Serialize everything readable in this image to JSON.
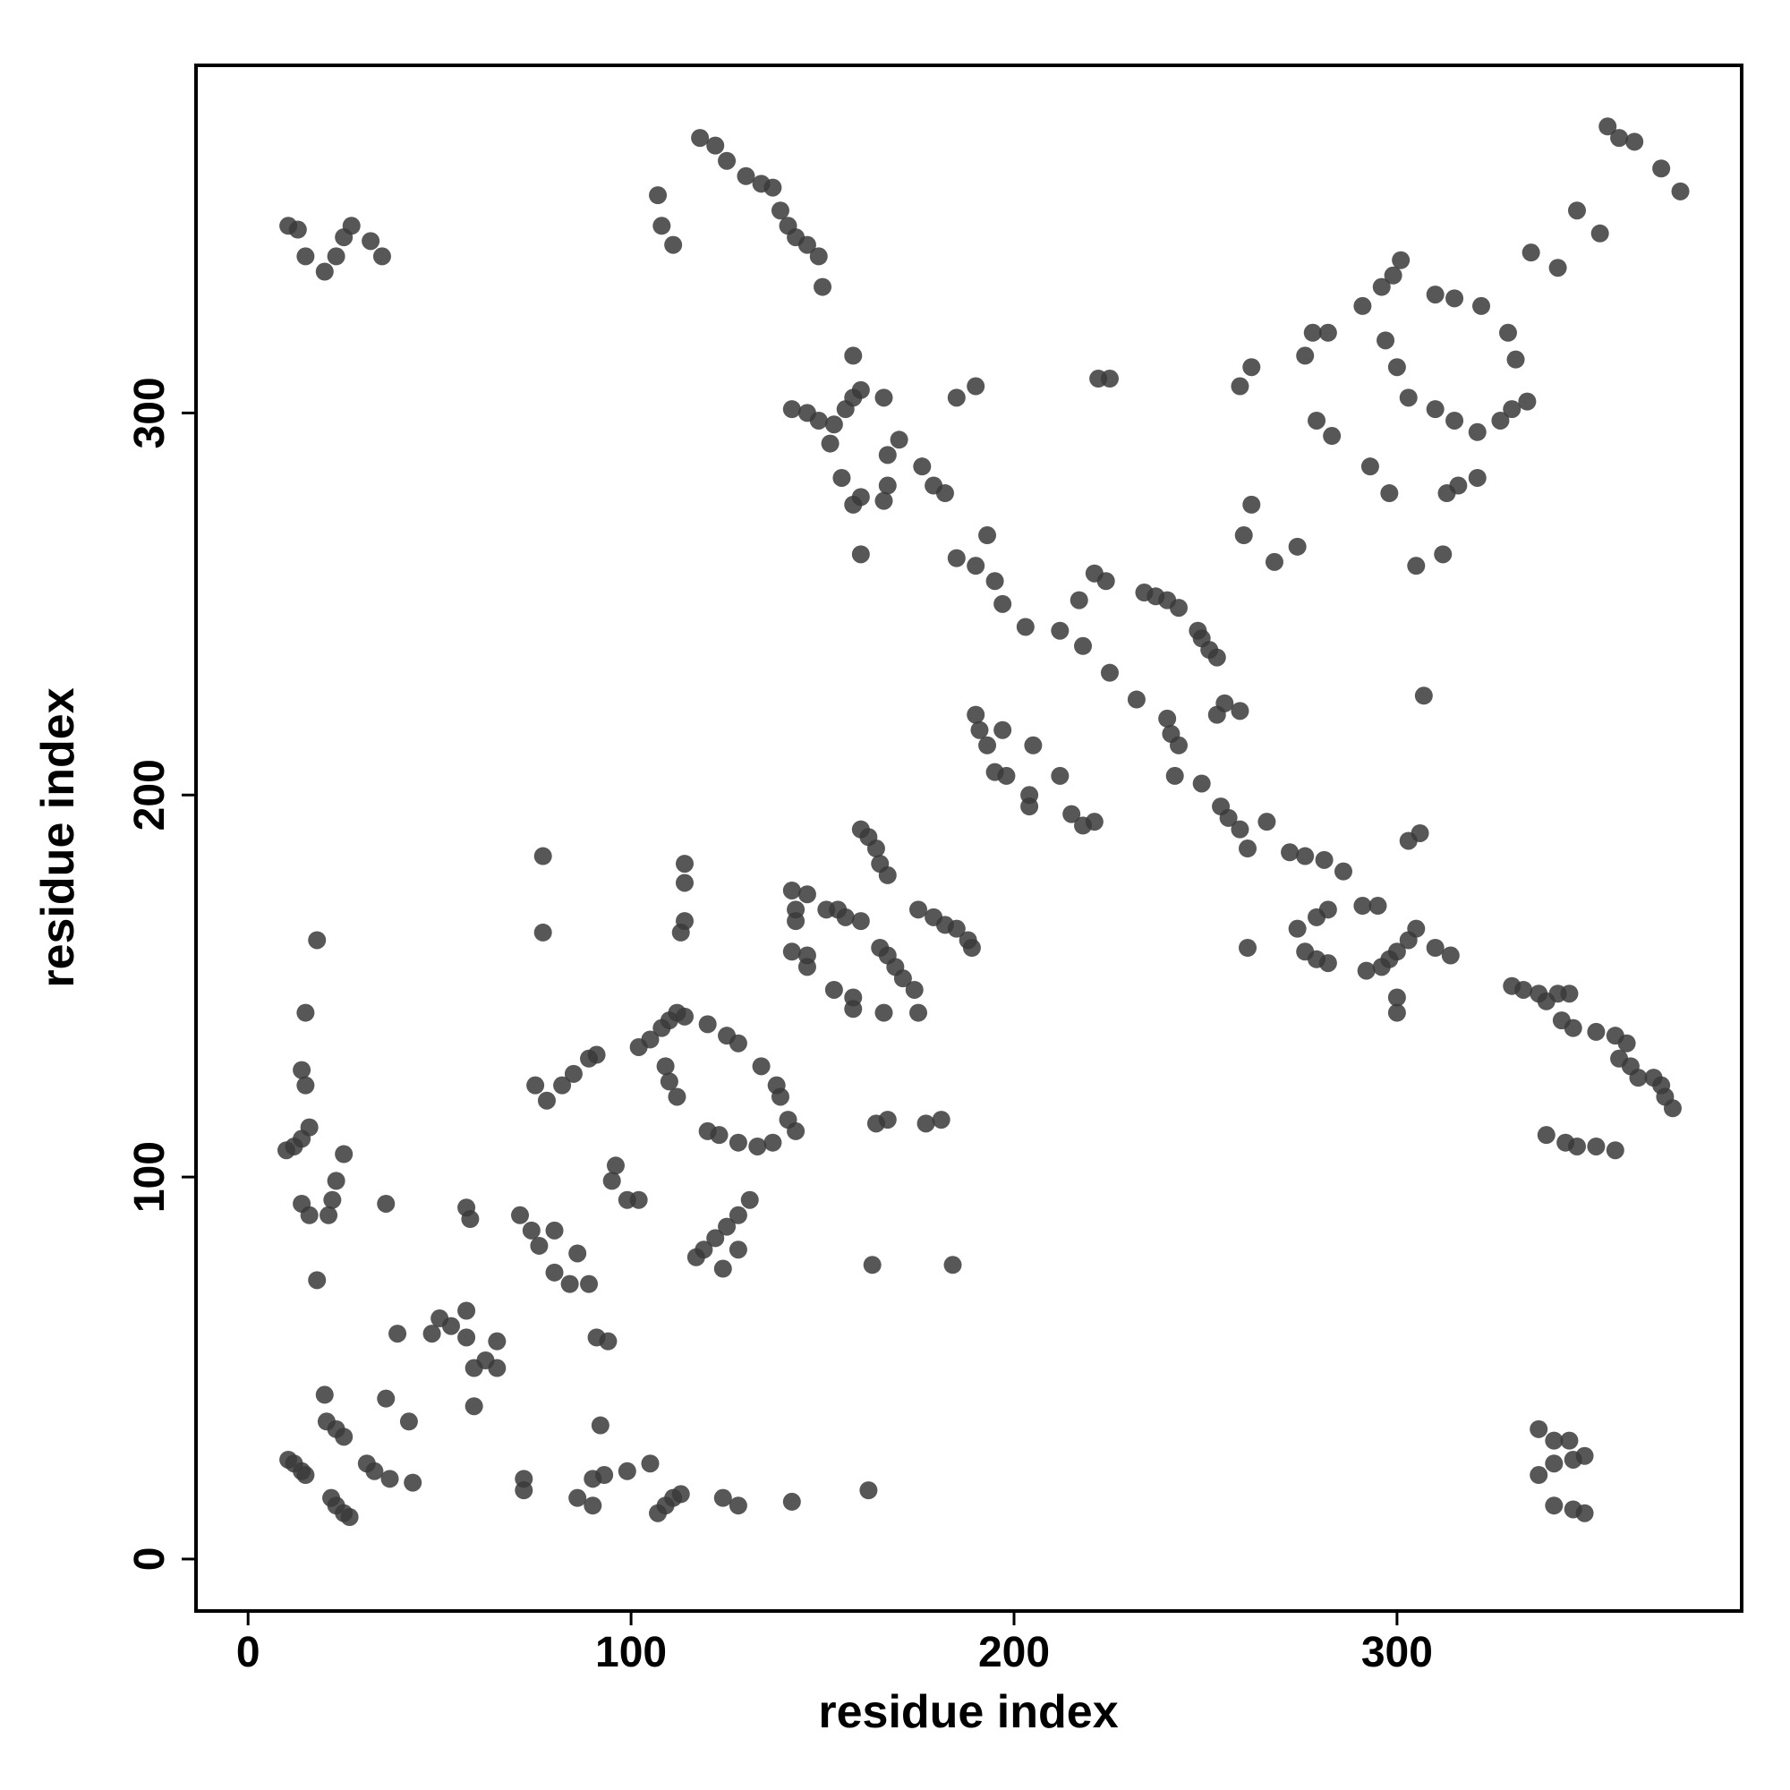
{
  "chart_data": {
    "type": "scatter",
    "x_label": "residue index",
    "y_label": "residue index",
    "color": "#3a3a3a",
    "xlim": [
      -13.6,
      390
    ],
    "ylim": [
      -13.6,
      391
    ],
    "xticks": [
      0,
      100,
      200,
      300
    ],
    "yticks": [
      0,
      100,
      200,
      300
    ],
    "grid": false,
    "x": [
      10.5,
      12,
      14,
      15,
      21.7,
      23,
      25,
      26.5,
      20.5,
      23,
      25,
      31,
      33,
      37,
      43,
      36,
      42,
      20,
      48,
      50,
      53,
      57,
      57,
      59,
      62,
      65,
      59,
      39,
      65,
      72,
      72,
      86,
      90,
      93,
      99,
      105,
      92,
      90,
      107,
      109,
      111,
      113,
      124,
      128,
      142,
      162,
      71,
      74,
      80,
      86,
      80,
      84,
      89,
      91,
      94,
      76,
      14,
      16,
      22,
      21,
      23,
      25,
      18,
      36,
      57,
      58,
      95,
      96,
      99,
      102,
      10,
      12,
      14,
      16,
      15,
      14,
      15,
      18,
      77,
      77,
      117,
      119,
      122,
      125,
      128,
      131,
      124,
      128,
      75,
      78,
      82,
      85,
      89,
      91,
      102,
      105,
      108,
      110,
      112,
      114,
      109,
      110,
      112,
      120,
      125,
      128,
      134,
      138,
      139,
      141,
      143,
      137,
      133,
      128,
      120,
      123,
      114,
      114,
      114,
      113,
      142,
      146,
      143,
      143,
      142,
      146,
      146,
      151,
      154,
      156,
      160,
      153,
      158,
      158,
      160,
      162,
      164,
      165,
      167,
      165,
      167,
      169,
      171,
      174,
      166,
      175,
      164,
      167,
      177,
      181,
      163,
      184,
      175,
      179,
      182,
      185,
      188,
      189,
      337,
      341,
      346,
      349,
      337,
      341,
      341,
      346,
      349,
      345,
      330,
      333,
      337,
      339,
      342,
      345,
      343,
      346,
      352,
      357,
      360,
      358,
      361,
      363,
      367,
      369,
      370,
      372,
      339,
      344,
      347,
      352,
      357,
      276,
      279,
      282,
      274,
      279,
      282,
      276,
      281,
      286,
      291,
      295,
      292,
      296,
      298,
      300,
      303,
      305,
      300,
      300,
      303,
      306,
      310,
      314,
      261,
      254,
      256,
      259,
      261,
      266,
      272,
      249,
      242,
      240,
      241,
      243,
      253,
      255,
      259,
      248,
      249,
      251,
      253,
      234,
      237,
      240,
      243,
      232,
      225,
      218,
      212,
      217,
      221,
      224,
      215,
      218,
      221,
      204,
      204,
      212,
      195,
      198,
      205,
      191,
      193,
      197,
      190,
      203,
      197,
      195,
      190,
      185,
      193,
      182,
      179,
      176,
      170,
      167,
      167,
      166,
      155,
      158,
      160,
      160,
      142,
      146,
      149,
      153,
      156,
      158,
      160,
      158,
      166,
      152,
      185,
      190,
      222,
      225,
      10.5,
      13,
      15,
      20,
      23,
      25,
      27,
      32,
      35,
      107,
      108,
      111,
      118,
      122,
      125,
      130,
      134,
      137,
      139,
      141,
      143,
      146,
      149,
      150,
      355,
      358,
      362,
      369,
      374,
      347,
      353,
      342,
      335,
      301,
      299,
      296,
      291,
      297,
      300,
      303,
      310,
      315,
      321,
      327,
      330,
      334,
      331,
      329,
      322,
      315,
      310,
      278,
      276,
      282,
      259,
      262,
      279,
      283,
      293,
      298,
      262,
      260,
      268,
      274,
      313,
      316,
      321,
      305,
      312,
      307
    ],
    "y": [
      26,
      25,
      23,
      22,
      16,
      14,
      12,
      11,
      36,
      34,
      32,
      25,
      23,
      21,
      20,
      42,
      36,
      43,
      59,
      63,
      61,
      65,
      58,
      50,
      52,
      57,
      40,
      59,
      50,
      21,
      18,
      16,
      21,
      22,
      23,
      25,
      35,
      14,
      12,
      14,
      16,
      17,
      16,
      14,
      15,
      18,
      90,
      86,
      86,
      80,
      75,
      72,
      72,
      58,
      57,
      82,
      93,
      90,
      94,
      90,
      99,
      106,
      73,
      93,
      92,
      89,
      99,
      103,
      94,
      94,
      107,
      108,
      110,
      113,
      124,
      128,
      143,
      162,
      164,
      184,
      79,
      81,
      84,
      87,
      90,
      94,
      76,
      81,
      124,
      120,
      124,
      127,
      131,
      132,
      134,
      136,
      139,
      141,
      143,
      142,
      129,
      125,
      121,
      140,
      137,
      135,
      129,
      124,
      121,
      115,
      112,
      109,
      108,
      109,
      112,
      111,
      182,
      177,
      167,
      164,
      175,
      174,
      170,
      167,
      159,
      158,
      155,
      170,
      170,
      168,
      167,
      149,
      144,
      147,
      191,
      189,
      186,
      182,
      179,
      160,
      158,
      155,
      152,
      149,
      143,
      143,
      114,
      115,
      114,
      115,
      77,
      77,
      170,
      168,
      166,
      165,
      162,
      160,
      22,
      25,
      26,
      27,
      34,
      31,
      14,
      13,
      12,
      31,
      150,
      149,
      148,
      146,
      148,
      148,
      141,
      139,
      138,
      137,
      135,
      131,
      129,
      126,
      126,
      124,
      121,
      118,
      111,
      109,
      108,
      108,
      107,
      159,
      157,
      156,
      165,
      168,
      170,
      184,
      183,
      180,
      171,
      171,
      154,
      155,
      157,
      159,
      162,
      165,
      147,
      143,
      188,
      190,
      160,
      158,
      160,
      197,
      194,
      191,
      186,
      193,
      185,
      203,
      205,
      220,
      216,
      213,
      221,
      224,
      222,
      243,
      241,
      238,
      236,
      253,
      252,
      251,
      249,
      225,
      232,
      239,
      243,
      251,
      258,
      256,
      195,
      192,
      193,
      197,
      200,
      205,
      206,
      205,
      213,
      217,
      213,
      217,
      221,
      244,
      250,
      256,
      260,
      262,
      268,
      279,
      281,
      286,
      293,
      289,
      281,
      277,
      283,
      276,
      263,
      278,
      301,
      300,
      298,
      297,
      301,
      304,
      306,
      315,
      304,
      292,
      304,
      307,
      309,
      309,
      349,
      348,
      341,
      337,
      341,
      346,
      349,
      345,
      341,
      357,
      349,
      344,
      372,
      370,
      366,
      362,
      360,
      359,
      353,
      349,
      346,
      344,
      341,
      333,
      375,
      372,
      371,
      364,
      358,
      353,
      347,
      338,
      342,
      340,
      336,
      333,
      328,
      319,
      312,
      304,
      301,
      298,
      295,
      298,
      301,
      303,
      314,
      321,
      328,
      330,
      331,
      321,
      315,
      321,
      307,
      312,
      298,
      294,
      286,
      279,
      276,
      268,
      261,
      265,
      279,
      281,
      283,
      260,
      263,
      226
    ]
  }
}
